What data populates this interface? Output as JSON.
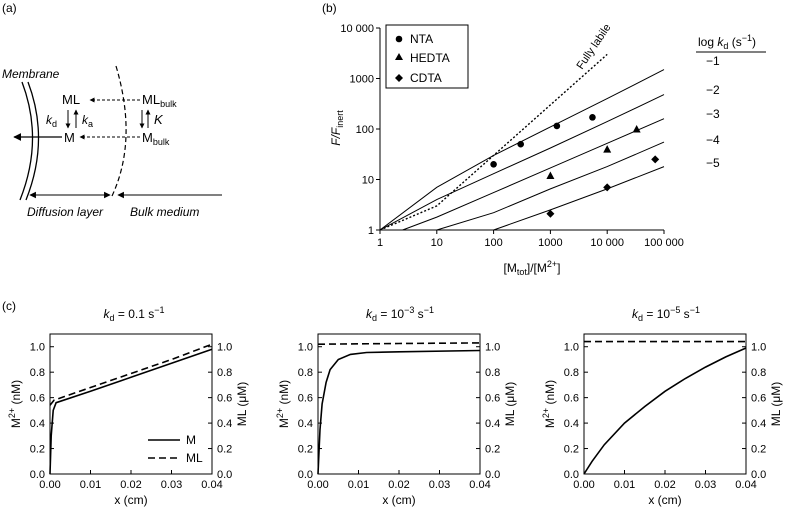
{
  "panel_a": {
    "label": "(a)",
    "membrane": "Membrane",
    "ml": "ML",
    "m": "M",
    "kd_base": "k",
    "kd_sub": "d",
    "ka_base": "k",
    "ka_sub": "a",
    "mlbulk_base": "ML",
    "mlbulk_sub": "bulk",
    "mbulk_base": "M",
    "mbulk_sub": "bulk",
    "K": "K",
    "diffusion": "Diffusion layer",
    "bulk": "Bulk medium"
  },
  "panel_b": {
    "label": "(b)",
    "fully_labile": "Fully labile",
    "ylabel_base": "F/F",
    "ylabel_sub": "inert",
    "xlabel": "[M",
    "xlabel_sub": "tot",
    "xlabel_end": "]/[M",
    "xlabel_sup": "2+",
    "xlabel_close": "]",
    "kd_header_pre": "log ",
    "kd_header_k": "k",
    "kd_header_sub": "d",
    "kd_header_post": " (s",
    "kd_header_sup": "−1",
    "kd_header_close": ")",
    "curve_labels": [
      "−1",
      "−2",
      "−3",
      "−4",
      "−5"
    ],
    "legend": [
      "NTA",
      "HEDTA",
      "CDTA"
    ]
  },
  "panel_c": {
    "label": "(c)",
    "titles": [
      {
        "pre": "k",
        "sub": "d",
        "post": " = 0.1 s",
        "sup": "−1"
      },
      {
        "pre": "k",
        "sub": "d",
        "post": " = 10",
        "sup": "−3",
        "post2": " s",
        "sup2": "−1"
      },
      {
        "pre": "k",
        "sub": "d",
        "post": " = 10",
        "sup": "−5",
        "post2": " s",
        "sup2": "−1"
      }
    ],
    "ylabel_left_base": "M",
    "ylabel_left_sup": "2+",
    "ylabel_left_unit": " (nM)",
    "ylabel_right": "ML (μM)",
    "xlabel": "x (cm)",
    "legend": [
      "M",
      "ML"
    ]
  },
  "chart_data": [
    {
      "type": "line",
      "title": "",
      "xlabel": "[Mtot]/[M2+]",
      "ylabel": "F/Finert",
      "xscale": "log",
      "yscale": "log",
      "xlim": [
        1,
        100000
      ],
      "ylim": [
        1,
        10000
      ],
      "x_ticks": [
        "1",
        "10",
        "100",
        "1000",
        "10 000",
        "100 000"
      ],
      "y_ticks": [
        "1",
        "10",
        "100",
        "1000",
        "10 000"
      ],
      "grid": false,
      "legend_position": "top-left",
      "series": [
        {
          "name": "Fully labile",
          "style": "dotted",
          "x": [
            1,
            10,
            100,
            1000,
            10000
          ],
          "y": [
            1,
            3,
            30,
            300,
            3000
          ]
        },
        {
          "name": "−1",
          "style": "solid",
          "x": [
            1,
            10,
            100,
            1000,
            10000,
            100000
          ],
          "y": [
            1,
            7,
            30,
            110,
            400,
            1500
          ]
        },
        {
          "name": "−2",
          "style": "solid",
          "x": [
            1,
            10,
            100,
            1000,
            10000,
            100000
          ],
          "y": [
            1,
            4,
            13,
            42,
            140,
            480
          ]
        },
        {
          "name": "−3",
          "style": "solid",
          "x": [
            2.5,
            10,
            100,
            1000,
            10000,
            100000
          ],
          "y": [
            1,
            1.8,
            5.5,
            17,
            52,
            160
          ]
        },
        {
          "name": "−4",
          "style": "solid",
          "x": [
            10,
            100,
            1000,
            10000,
            100000
          ],
          "y": [
            1,
            2.2,
            6.5,
            18,
            55
          ]
        },
        {
          "name": "−5",
          "style": "solid",
          "x": [
            100,
            1000,
            10000,
            100000
          ],
          "y": [
            1,
            2.5,
            6.5,
            18
          ]
        },
        {
          "name": "NTA",
          "marker": "circle",
          "x": [
            100,
            300,
            1300,
            5500
          ],
          "y": [
            20,
            50,
            115,
            170
          ]
        },
        {
          "name": "HEDTA",
          "marker": "triangle",
          "x": [
            1000,
            10000,
            33000
          ],
          "y": [
            12,
            40,
            100
          ]
        },
        {
          "name": "CDTA",
          "marker": "diamond",
          "x": [
            1000,
            10000,
            70000
          ],
          "y": [
            2.1,
            7,
            25
          ]
        }
      ]
    },
    {
      "type": "line",
      "title": "kd = 0.1 s−1",
      "xlabel": "x (cm)",
      "ylabel": "M2+ (nM)",
      "ylabel_right": "ML (μM)",
      "xlim": [
        0,
        0.04
      ],
      "ylim": [
        0,
        1.1
      ],
      "x_ticks": [
        "0.00",
        "0.01",
        "0.02",
        "0.03",
        "0.04"
      ],
      "y_ticks": [
        "0.0",
        "0.2",
        "0.4",
        "0.6",
        "0.8",
        "1.0"
      ],
      "legend_position": "bottom-right",
      "series": [
        {
          "name": "M",
          "style": "solid",
          "x": [
            0,
            0.0003,
            0.0008,
            0.0015,
            0.01,
            0.02,
            0.03,
            0.04
          ],
          "y": [
            0,
            0.3,
            0.5,
            0.56,
            0.65,
            0.76,
            0.87,
            0.98
          ]
        },
        {
          "name": "ML",
          "style": "dashed",
          "x": [
            0,
            0.001,
            0.01,
            0.02,
            0.03,
            0.04
          ],
          "y": [
            0.54,
            0.58,
            0.68,
            0.79,
            0.9,
            1.02
          ]
        }
      ]
    },
    {
      "type": "line",
      "title": "kd = 10−3 s−1",
      "xlabel": "x (cm)",
      "ylabel": "M2+ (nM)",
      "ylabel_right": "ML (μM)",
      "xlim": [
        0,
        0.04
      ],
      "ylim": [
        0,
        1.1
      ],
      "x_ticks": [
        "0.00",
        "0.01",
        "0.02",
        "0.03",
        "0.04"
      ],
      "y_ticks": [
        "0.0",
        "0.2",
        "0.4",
        "0.6",
        "0.8",
        "1.0"
      ],
      "series": [
        {
          "name": "M",
          "style": "solid",
          "x": [
            0,
            0.0005,
            0.001,
            0.002,
            0.003,
            0.005,
            0.008,
            0.012,
            0.02,
            0.04
          ],
          "y": [
            0,
            0.35,
            0.55,
            0.72,
            0.82,
            0.9,
            0.94,
            0.955,
            0.96,
            0.97
          ]
        },
        {
          "name": "ML",
          "style": "dashed",
          "x": [
            0,
            0.02,
            0.04
          ],
          "y": [
            1.02,
            1.025,
            1.03
          ]
        }
      ]
    },
    {
      "type": "line",
      "title": "kd = 10−5 s−1",
      "xlabel": "x (cm)",
      "ylabel": "M2+ (nM)",
      "ylabel_right": "ML (μM)",
      "xlim": [
        0,
        0.04
      ],
      "ylim": [
        0,
        1.1
      ],
      "x_ticks": [
        "0.00",
        "0.01",
        "0.02",
        "0.03",
        "0.04"
      ],
      "y_ticks": [
        "0.0",
        "0.2",
        "0.4",
        "0.6",
        "0.8",
        "1.0"
      ],
      "series": [
        {
          "name": "M",
          "style": "solid",
          "x": [
            0,
            0.002,
            0.005,
            0.01,
            0.015,
            0.02,
            0.025,
            0.03,
            0.035,
            0.04
          ],
          "y": [
            0,
            0.1,
            0.23,
            0.4,
            0.53,
            0.65,
            0.75,
            0.84,
            0.92,
            0.99
          ]
        },
        {
          "name": "ML",
          "style": "dashed",
          "x": [
            0,
            0.04
          ],
          "y": [
            1.04,
            1.04
          ]
        }
      ]
    }
  ]
}
